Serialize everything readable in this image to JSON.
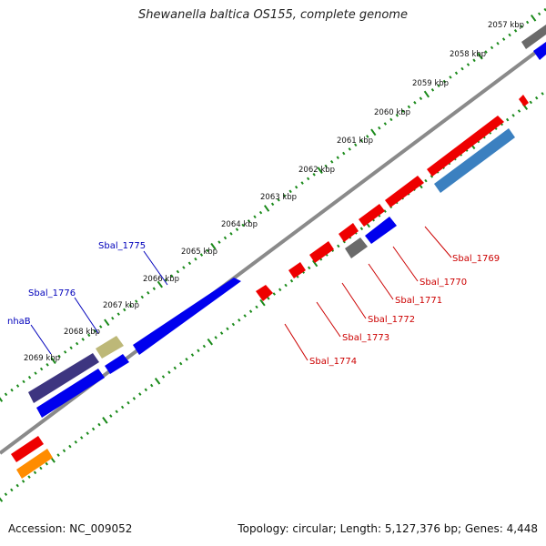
{
  "title": "Shewanella baltica OS155, complete genome",
  "footer": {
    "accession": "Accession: NC_009052",
    "summary": "Topology: circular; Length: 5,127,376 bp; Genes: 4,448"
  },
  "colors": {
    "forward_gene": "#ee0000",
    "reverse_gene": "#0000ee",
    "reverse_gene_alt": "#3b80c0",
    "grey_gene": "#6a6a6a",
    "purple_gene": "#3d3580",
    "khaki_gene": "#bdb878",
    "orange_gene": "#ff8c00",
    "backbone": "#8a8a8a",
    "tick_dots": "#1a8a1a",
    "label_red": "#cc0000",
    "label_blue": "#0000bb"
  },
  "kbp_labels": [
    "2057 kbp",
    "2058 kbp",
    "2059 kbp",
    "2060 kbp",
    "2061 kbp",
    "2062 kbp",
    "2063 kbp",
    "2064 kbp",
    "2065 kbp",
    "2066 kbp",
    "2067 kbp",
    "2068 kbp",
    "2069 kbp"
  ],
  "gene_labels": {
    "sbal_1769": "Sbal_1769",
    "sbal_1770": "Sbal_1770",
    "sbal_1771": "Sbal_1771",
    "sbal_1772": "Sbal_1772",
    "sbal_1773": "Sbal_1773",
    "sbal_1774": "Sbal_1774",
    "sbal_1775": "Sbal_1775",
    "sbal_1776": "Sbal_1776",
    "nhab": "nhaB"
  }
}
